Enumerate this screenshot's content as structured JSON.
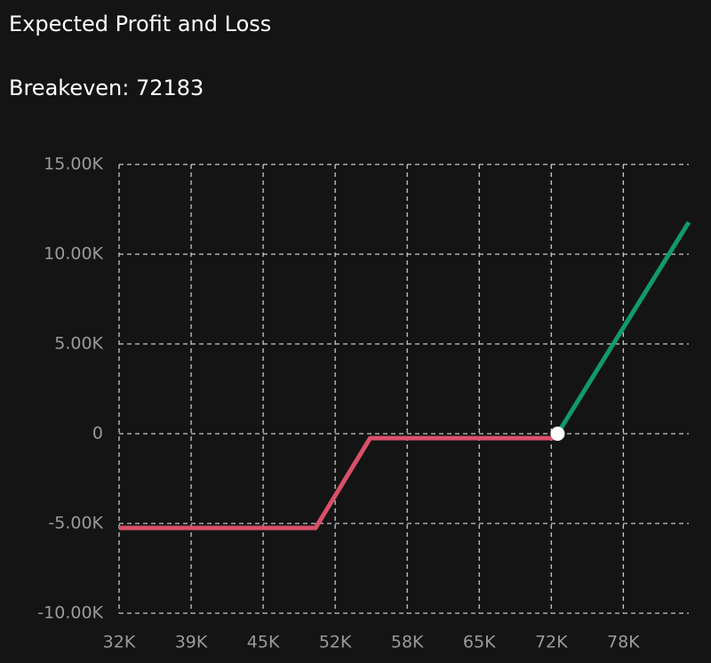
{
  "chart_data": {
    "type": "line",
    "title": "Expected Profit and Loss",
    "subtitle": "Breakeven: 72183",
    "xlim": [
      32000,
      84200
    ],
    "ylim": [
      -10000,
      15000
    ],
    "xticks": [
      {
        "value": 32000,
        "label": "32K"
      },
      {
        "value": 38600,
        "label": "39K"
      },
      {
        "value": 45200,
        "label": "45K"
      },
      {
        "value": 51800,
        "label": "52K"
      },
      {
        "value": 58400,
        "label": "58K"
      },
      {
        "value": 65000,
        "label": "65K"
      },
      {
        "value": 71600,
        "label": "72K"
      },
      {
        "value": 78200,
        "label": "78K"
      }
    ],
    "yticks": [
      {
        "value": 15000,
        "label": "15.00K"
      },
      {
        "value": 10000,
        "label": "10.00K"
      },
      {
        "value": 5000,
        "label": "5.00K"
      },
      0,
      {
        "value": -5000,
        "label": "-5.00K"
      },
      {
        "value": -10000,
        "label": "-10.00K"
      }
    ],
    "grid": true,
    "series": [
      {
        "color": "#d9506a",
        "x": [
          32000,
          50000,
          55000,
          71900
        ],
        "values": [
          -5250,
          -5250,
          -250,
          -250
        ]
      },
      {
        "color": "#109a6a",
        "x": [
          72183,
          84200
        ],
        "values": [
          0,
          11780
        ]
      }
    ],
    "breakeven_point": {
      "x": 72183,
      "y": 0,
      "color": "#ffffff"
    }
  }
}
